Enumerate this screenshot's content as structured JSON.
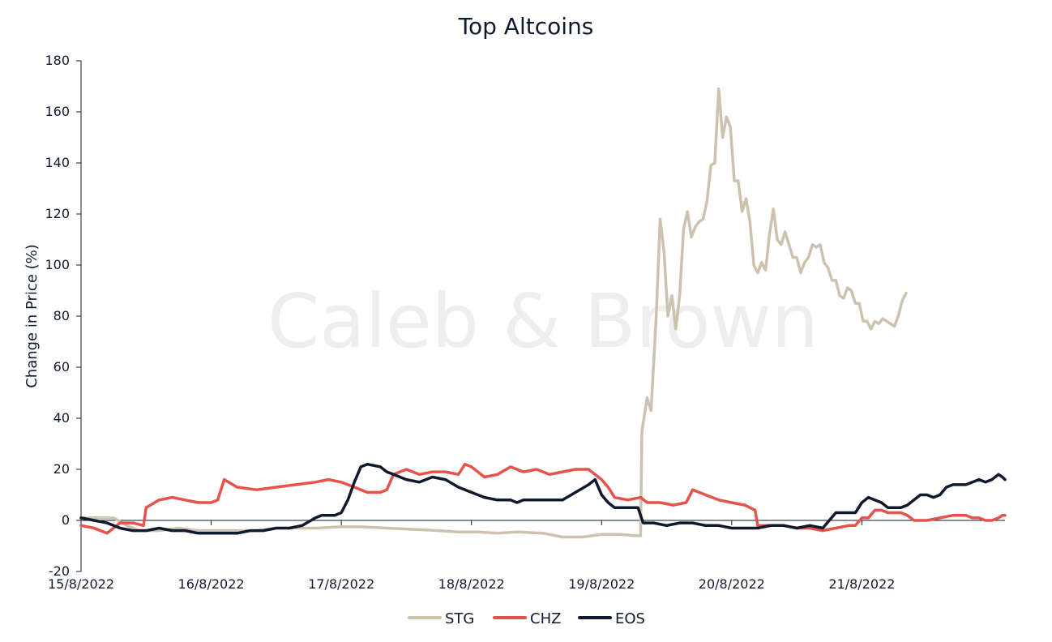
{
  "chart_data": {
    "type": "line",
    "title": "Top Altcoins",
    "watermark": "Caleb & Brown",
    "xlabel": "",
    "ylabel": "Change in Price (%)",
    "ylim": [
      -20,
      180
    ],
    "yticks": [
      -20,
      0,
      20,
      40,
      60,
      80,
      100,
      120,
      140,
      160,
      180
    ],
    "xlim": [
      0,
      7.1
    ],
    "xticks": [
      {
        "x": 0,
        "label": "15/8/2022"
      },
      {
        "x": 1,
        "label": "16/8/2022"
      },
      {
        "x": 2,
        "label": "17/8/2022"
      },
      {
        "x": 3,
        "label": "18/8/2022"
      },
      {
        "x": 4,
        "label": "19/8/2022"
      },
      {
        "x": 5,
        "label": "20/8/2022"
      },
      {
        "x": 6,
        "label": "21/8/2022"
      }
    ],
    "grid": false,
    "legend_position": "bottom",
    "series": [
      {
        "name": "STG",
        "color": "#cdc2b0",
        "points": [
          [
            0,
            1
          ],
          [
            0.15,
            1
          ],
          [
            0.25,
            1
          ],
          [
            0.35,
            -2
          ],
          [
            0.45,
            -4
          ],
          [
            0.6,
            -4
          ],
          [
            0.75,
            -3
          ],
          [
            0.9,
            -4
          ],
          [
            1.05,
            -4
          ],
          [
            1.2,
            -4
          ],
          [
            1.35,
            -4
          ],
          [
            1.5,
            -3
          ],
          [
            1.65,
            -3
          ],
          [
            1.8,
            -3
          ],
          [
            2.0,
            -2.5
          ],
          [
            2.15,
            -2.5
          ],
          [
            2.35,
            -3
          ],
          [
            2.55,
            -3.5
          ],
          [
            2.75,
            -4
          ],
          [
            2.9,
            -4.5
          ],
          [
            3.05,
            -4.5
          ],
          [
            3.2,
            -5
          ],
          [
            3.35,
            -4.5
          ],
          [
            3.55,
            -5
          ],
          [
            3.7,
            -6.5
          ],
          [
            3.85,
            -6.5
          ],
          [
            4.0,
            -5.5
          ],
          [
            4.15,
            -5.5
          ],
          [
            4.25,
            -6
          ],
          [
            4.3,
            -6
          ],
          [
            4.31,
            35
          ],
          [
            4.35,
            48
          ],
          [
            4.38,
            43
          ],
          [
            4.42,
            80
          ],
          [
            4.45,
            118
          ],
          [
            4.48,
            105
          ],
          [
            4.51,
            80
          ],
          [
            4.54,
            88
          ],
          [
            4.57,
            75
          ],
          [
            4.6,
            88
          ],
          [
            4.63,
            114
          ],
          [
            4.66,
            121
          ],
          [
            4.69,
            111
          ],
          [
            4.72,
            115
          ],
          [
            4.75,
            117
          ],
          [
            4.78,
            118
          ],
          [
            4.81,
            125
          ],
          [
            4.84,
            139
          ],
          [
            4.87,
            140
          ],
          [
            4.9,
            169
          ],
          [
            4.93,
            150
          ],
          [
            4.96,
            158
          ],
          [
            4.99,
            154
          ],
          [
            5.02,
            133
          ],
          [
            5.05,
            133
          ],
          [
            5.08,
            121
          ],
          [
            5.11,
            126
          ],
          [
            5.14,
            117
          ],
          [
            5.17,
            100
          ],
          [
            5.2,
            97
          ],
          [
            5.23,
            101
          ],
          [
            5.26,
            98
          ],
          [
            5.29,
            112
          ],
          [
            5.32,
            122
          ],
          [
            5.35,
            110
          ],
          [
            5.38,
            108
          ],
          [
            5.41,
            113
          ],
          [
            5.44,
            108
          ],
          [
            5.47,
            103
          ],
          [
            5.5,
            103
          ],
          [
            5.53,
            97
          ],
          [
            5.56,
            101
          ],
          [
            5.59,
            103
          ],
          [
            5.62,
            108
          ],
          [
            5.65,
            107
          ],
          [
            5.68,
            108
          ],
          [
            5.71,
            101
          ],
          [
            5.74,
            99
          ],
          [
            5.77,
            94
          ],
          [
            5.8,
            94
          ],
          [
            5.83,
            88
          ],
          [
            5.86,
            87
          ],
          [
            5.89,
            91
          ],
          [
            5.92,
            90
          ],
          [
            5.95,
            85
          ],
          [
            5.98,
            85
          ],
          [
            6.01,
            78
          ],
          [
            6.04,
            78
          ],
          [
            6.07,
            75
          ],
          [
            6.1,
            78
          ],
          [
            6.13,
            77
          ],
          [
            6.16,
            79
          ],
          [
            6.19,
            78
          ],
          [
            6.22,
            77
          ],
          [
            6.25,
            76
          ],
          [
            6.28,
            80
          ],
          [
            6.31,
            86
          ],
          [
            6.34,
            89
          ]
        ]
      },
      {
        "name": "CHZ",
        "color": "#e5534b",
        "points": [
          [
            0,
            -2
          ],
          [
            0.1,
            -3
          ],
          [
            0.2,
            -5
          ],
          [
            0.3,
            -1
          ],
          [
            0.4,
            -1
          ],
          [
            0.48,
            -2
          ],
          [
            0.5,
            5
          ],
          [
            0.6,
            8
          ],
          [
            0.7,
            9
          ],
          [
            0.8,
            8
          ],
          [
            0.9,
            7
          ],
          [
            1.0,
            7
          ],
          [
            1.05,
            8
          ],
          [
            1.1,
            16
          ],
          [
            1.2,
            13
          ],
          [
            1.35,
            12
          ],
          [
            1.5,
            13
          ],
          [
            1.65,
            14
          ],
          [
            1.8,
            15
          ],
          [
            1.9,
            16
          ],
          [
            2.0,
            15
          ],
          [
            2.1,
            13
          ],
          [
            2.2,
            11
          ],
          [
            2.3,
            11
          ],
          [
            2.35,
            12
          ],
          [
            2.4,
            18
          ],
          [
            2.5,
            20
          ],
          [
            2.6,
            18
          ],
          [
            2.7,
            19
          ],
          [
            2.8,
            19
          ],
          [
            2.9,
            18
          ],
          [
            2.95,
            22
          ],
          [
            3.0,
            21
          ],
          [
            3.1,
            17
          ],
          [
            3.2,
            18
          ],
          [
            3.3,
            21
          ],
          [
            3.4,
            19
          ],
          [
            3.5,
            20
          ],
          [
            3.6,
            18
          ],
          [
            3.7,
            19
          ],
          [
            3.8,
            20
          ],
          [
            3.9,
            20
          ],
          [
            4.0,
            16
          ],
          [
            4.05,
            13
          ],
          [
            4.1,
            9
          ],
          [
            4.2,
            8
          ],
          [
            4.3,
            9
          ],
          [
            4.35,
            7
          ],
          [
            4.45,
            7
          ],
          [
            4.55,
            6
          ],
          [
            4.65,
            7
          ],
          [
            4.7,
            12
          ],
          [
            4.8,
            10
          ],
          [
            4.9,
            8
          ],
          [
            5.0,
            7
          ],
          [
            5.1,
            6
          ],
          [
            5.18,
            4
          ],
          [
            5.2,
            -2
          ],
          [
            5.3,
            -2
          ],
          [
            5.4,
            -2
          ],
          [
            5.5,
            -3
          ],
          [
            5.6,
            -3
          ],
          [
            5.7,
            -4
          ],
          [
            5.8,
            -3
          ],
          [
            5.9,
            -2
          ],
          [
            5.95,
            -2
          ],
          [
            6.0,
            1
          ],
          [
            6.05,
            1
          ],
          [
            6.1,
            4
          ],
          [
            6.15,
            4
          ],
          [
            6.2,
            3
          ],
          [
            6.25,
            3
          ],
          [
            6.3,
            3
          ],
          [
            6.35,
            2
          ],
          [
            6.4,
            0
          ],
          [
            6.5,
            0
          ],
          [
            6.6,
            1
          ],
          [
            6.7,
            2
          ],
          [
            6.8,
            2
          ],
          [
            6.85,
            1
          ],
          [
            6.9,
            1
          ],
          [
            6.95,
            0
          ],
          [
            7.0,
            0
          ],
          [
            7.05,
            1
          ],
          [
            7.08,
            2
          ],
          [
            7.1,
            2
          ]
        ]
      },
      {
        "name": "EOS",
        "color": "#0f1b2d",
        "points": [
          [
            0,
            1
          ],
          [
            0.1,
            0
          ],
          [
            0.2,
            -1
          ],
          [
            0.3,
            -3
          ],
          [
            0.4,
            -4
          ],
          [
            0.5,
            -4
          ],
          [
            0.6,
            -3
          ],
          [
            0.7,
            -4
          ],
          [
            0.8,
            -4
          ],
          [
            0.9,
            -5
          ],
          [
            1.0,
            -5
          ],
          [
            1.1,
            -5
          ],
          [
            1.2,
            -5
          ],
          [
            1.3,
            -4
          ],
          [
            1.4,
            -4
          ],
          [
            1.5,
            -3
          ],
          [
            1.6,
            -3
          ],
          [
            1.7,
            -2
          ],
          [
            1.8,
            1
          ],
          [
            1.85,
            2
          ],
          [
            1.9,
            2
          ],
          [
            1.95,
            2
          ],
          [
            2.0,
            3
          ],
          [
            2.05,
            8
          ],
          [
            2.1,
            15
          ],
          [
            2.15,
            21
          ],
          [
            2.2,
            22
          ],
          [
            2.3,
            21
          ],
          [
            2.35,
            19
          ],
          [
            2.4,
            18
          ],
          [
            2.5,
            16
          ],
          [
            2.6,
            15
          ],
          [
            2.7,
            17
          ],
          [
            2.8,
            16
          ],
          [
            2.9,
            13
          ],
          [
            3.0,
            11
          ],
          [
            3.1,
            9
          ],
          [
            3.2,
            8
          ],
          [
            3.3,
            8
          ],
          [
            3.35,
            7
          ],
          [
            3.4,
            8
          ],
          [
            3.5,
            8
          ],
          [
            3.6,
            8
          ],
          [
            3.7,
            8
          ],
          [
            3.8,
            11
          ],
          [
            3.9,
            14
          ],
          [
            3.95,
            16
          ],
          [
            4.0,
            10
          ],
          [
            4.05,
            7
          ],
          [
            4.1,
            5
          ],
          [
            4.2,
            5
          ],
          [
            4.28,
            5
          ],
          [
            4.32,
            -1
          ],
          [
            4.4,
            -1
          ],
          [
            4.5,
            -2
          ],
          [
            4.6,
            -1
          ],
          [
            4.7,
            -1
          ],
          [
            4.8,
            -2
          ],
          [
            4.9,
            -2
          ],
          [
            5.0,
            -3
          ],
          [
            5.1,
            -3
          ],
          [
            5.2,
            -3
          ],
          [
            5.3,
            -2
          ],
          [
            5.4,
            -2
          ],
          [
            5.5,
            -3
          ],
          [
            5.6,
            -2
          ],
          [
            5.7,
            -3
          ],
          [
            5.75,
            0
          ],
          [
            5.8,
            3
          ],
          [
            5.9,
            3
          ],
          [
            5.95,
            3
          ],
          [
            6.0,
            7
          ],
          [
            6.05,
            9
          ],
          [
            6.1,
            8
          ],
          [
            6.15,
            7
          ],
          [
            6.2,
            5
          ],
          [
            6.3,
            5
          ],
          [
            6.35,
            6
          ],
          [
            6.4,
            8
          ],
          [
            6.45,
            10
          ],
          [
            6.5,
            10
          ],
          [
            6.55,
            9
          ],
          [
            6.6,
            10
          ],
          [
            6.65,
            13
          ],
          [
            6.7,
            14
          ],
          [
            6.8,
            14
          ],
          [
            6.85,
            15
          ],
          [
            6.9,
            16
          ],
          [
            6.95,
            15
          ],
          [
            7.0,
            16
          ],
          [
            7.05,
            18
          ],
          [
            7.08,
            17
          ],
          [
            7.1,
            16
          ]
        ]
      }
    ]
  }
}
